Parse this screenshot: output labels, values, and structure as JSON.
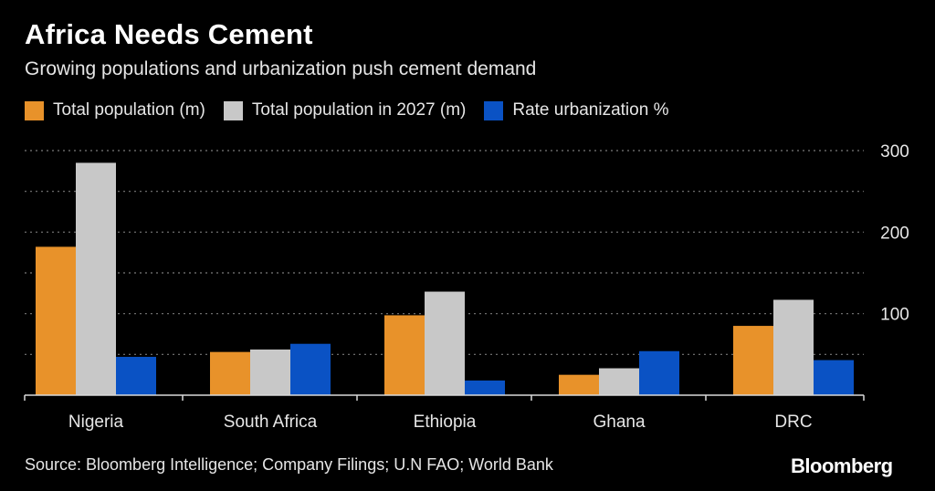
{
  "header": {
    "title": "Africa Needs Cement",
    "subtitle": "Growing populations and urbanization push cement demand"
  },
  "footer": {
    "source": "Source: Bloomberg Intelligence; Company Filings; U.N FAO; World Bank",
    "logo": "Bloomberg"
  },
  "colors": {
    "background": "#000000",
    "gridline": "#7a7a7a",
    "axis": "#d9d9d9",
    "text": "#e6e6e6"
  },
  "chart_data": {
    "type": "bar",
    "title": "Africa Needs Cement",
    "subtitle": "Growing populations and urbanization push cement demand",
    "xlabel": "",
    "ylabel": "",
    "categories": [
      "Nigeria",
      "South Africa",
      "Ethiopia",
      "Ghana",
      "DRC"
    ],
    "series": [
      {
        "name": "Total population (m)",
        "color": "#e8922a",
        "values": [
          182,
          53,
          98,
          25,
          85
        ]
      },
      {
        "name": "Total population in 2027 (m)",
        "color": "#c8c8c8",
        "values": [
          285,
          56,
          127,
          33,
          117
        ]
      },
      {
        "name": "Rate urbanization %",
        "color": "#0a52c4",
        "values": [
          47,
          63,
          18,
          54,
          43
        ]
      }
    ],
    "ylim": [
      0,
      300
    ],
    "yticks": [
      300,
      200,
      100
    ],
    "gridlines": [
      300,
      250,
      200,
      150,
      100,
      50
    ],
    "y_axis_position": "right",
    "grid": true,
    "legend_position": "top-left"
  }
}
